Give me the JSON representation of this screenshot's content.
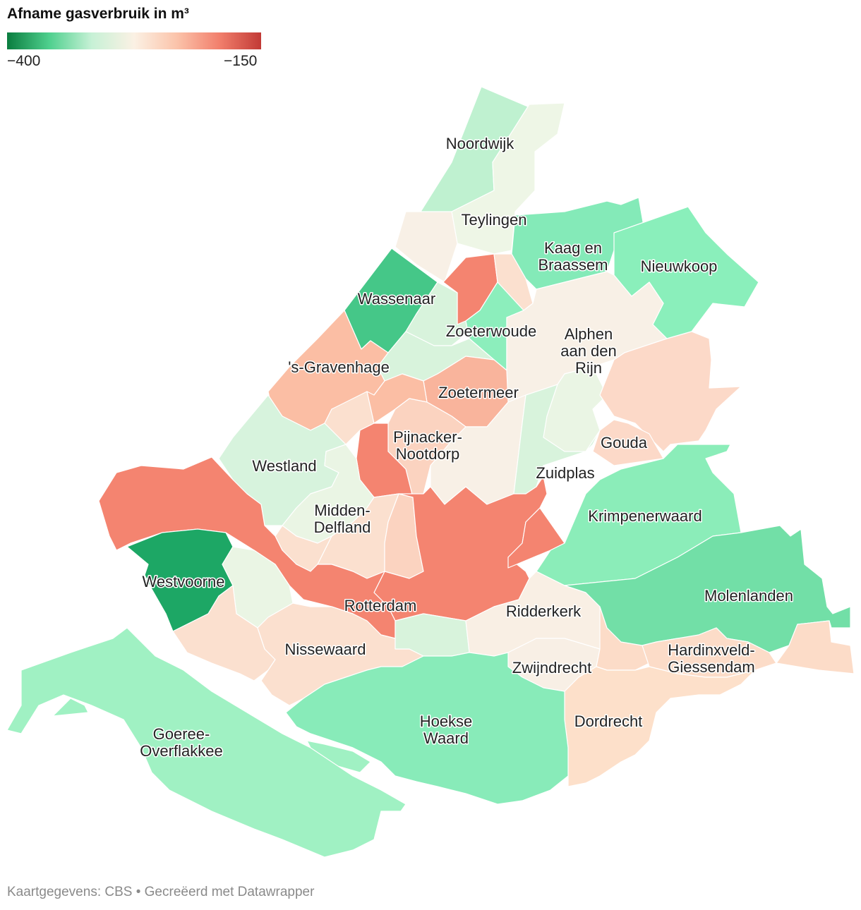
{
  "legend": {
    "title": "Afname gasverbruik in m³",
    "min_label": "−400",
    "max_label": "−150",
    "min_value": -400,
    "max_value": -150,
    "stops": [
      "#0a7d3f",
      "#4fd08e",
      "#c7f1d6",
      "#fbf1e4",
      "#fbc4ab",
      "#f2806d",
      "#c23a36"
    ]
  },
  "map_data": {
    "type": "choropleth",
    "regions": [
      {
        "name": "Noordwijk",
        "color": "#bff1d0"
      },
      {
        "name": "Teylingen",
        "color": "#eef6e6"
      },
      {
        "name": "Kaag en Braassem",
        "color": "#84eab8"
      },
      {
        "name": "Nieuwkoop",
        "color": "#8aefbb"
      },
      {
        "name": "Wassenaar",
        "color": "#45c788"
      },
      {
        "name": "Zoeterwoude",
        "color": "#8ceebc"
      },
      {
        "name": "Alphen aan den Rijn",
        "color": "#f8f0e6"
      },
      {
        "name": "'s-Gravenhage",
        "color": "#fbbea4"
      },
      {
        "name": "Zoetermeer",
        "color": "#f9b49c"
      },
      {
        "name": "Pijnacker-Nootdorp",
        "color": "#fbd3c0"
      },
      {
        "name": "Westland",
        "color": "#d7f3dd"
      },
      {
        "name": "Gouda",
        "color": "#fcd9c8"
      },
      {
        "name": "Zuidplas",
        "color": "#d8f3dc"
      },
      {
        "name": "Krimpenerwaard",
        "color": "#8bedb9"
      },
      {
        "name": "Midden-Delfland",
        "color": "#eaf5e4"
      },
      {
        "name": "Westvoorne",
        "color": "#1da765"
      },
      {
        "name": "Rotterdam",
        "color": "#f48470"
      },
      {
        "name": "Ridderkerk",
        "color": "#f9efe4"
      },
      {
        "name": "Molenlanden",
        "color": "#72dfa7"
      },
      {
        "name": "Nissewaard",
        "color": "#fbe0cf"
      },
      {
        "name": "Hardinxveld-Giessendam",
        "color": "#fcdcc8"
      },
      {
        "name": "Zwijndrecht",
        "color": "#f8efe5"
      },
      {
        "name": "Goeree-Overflakkee",
        "color": "#a0f1c3"
      },
      {
        "name": "Hoekse Waard",
        "color": "#88ebb9"
      },
      {
        "name": "Dordrecht",
        "color": "#fde0ca"
      }
    ]
  },
  "labels": {
    "noordwijk": "Noordwijk",
    "teylingen": "Teylingen",
    "kaag_1": "Kaag en",
    "kaag_2": "Braassem",
    "nieuwkoop": "Nieuwkoop",
    "wassenaar": "Wassenaar",
    "zoeterwoude": "Zoeterwoude",
    "alphen_1": "Alphen",
    "alphen_2": "aan den",
    "alphen_3": "Rijn",
    "gravenhage": "'s-Gravenhage",
    "zoetermeer": "Zoetermeer",
    "pijnacker_1": "Pijnacker-",
    "pijnacker_2": "Nootdorp",
    "westland": "Westland",
    "gouda": "Gouda",
    "zuidplas": "Zuidplas",
    "krimpenerwaard": "Krimpenerwaard",
    "midden_1": "Midden-",
    "midden_2": "Delfland",
    "westvoorne": "Westvoorne",
    "rotterdam": "Rotterdam",
    "ridderkerk": "Ridderkerk",
    "molenlanden": "Molenlanden",
    "nissewaard": "Nissewaard",
    "hardinxveld_1": "Hardinxveld-",
    "hardinxveld_2": "Giessendam",
    "zwijndrecht": "Zwijndrecht",
    "goeree_1": "Goeree-",
    "goeree_2": "Overflakkee",
    "hoekse_1": "Hoekse",
    "hoekse_2": "Waard",
    "dordrecht": "Dordrecht"
  },
  "footer": "Kaartgegevens: CBS • Gecreëerd met Datawrapper"
}
